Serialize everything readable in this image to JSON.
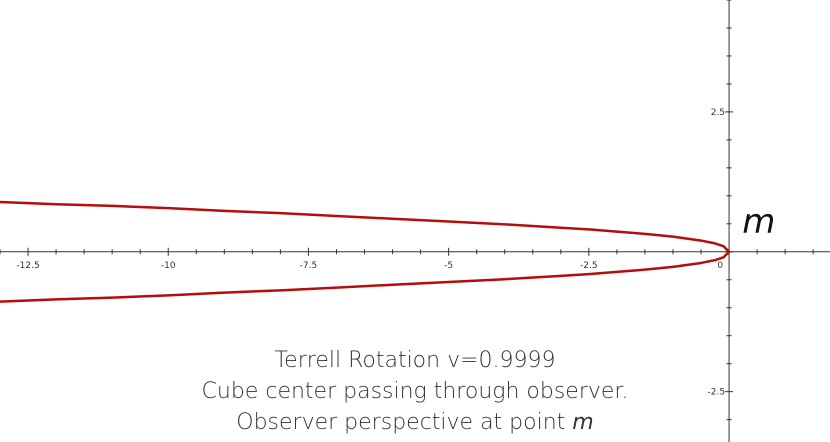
{
  "chart_data": {
    "type": "line",
    "title": "",
    "xlabel": "",
    "ylabel": "",
    "xlim": [
      -13,
      1.8
    ],
    "ylim": [
      -3.4,
      4.5
    ],
    "x_ticks": [
      -12.5,
      -10,
      -7.5,
      -5,
      -2.5,
      0
    ],
    "x_tick_labels": [
      "-12.5",
      "-10",
      "-7.5",
      "-5",
      "-2.5",
      "0"
    ],
    "y_ticks": [
      2.5,
      -2.5
    ],
    "y_tick_labels": [
      "2.5",
      "-2.5"
    ],
    "grid": false,
    "series": [
      {
        "color": "#b50d0d",
        "x": [
          0,
          -0.1,
          -0.25,
          -0.5,
          -1,
          -1.5,
          -2,
          -2.5,
          -3,
          -4,
          -5,
          -6,
          -7,
          -8,
          -9,
          -10,
          -11,
          -12,
          -13
        ],
        "y_upper": [
          0,
          0.1,
          0.15,
          0.2,
          0.27,
          0.32,
          0.36,
          0.4,
          0.43,
          0.49,
          0.54,
          0.59,
          0.64,
          0.69,
          0.73,
          0.78,
          0.82,
          0.85,
          0.89
        ],
        "y_lower": [
          0,
          -0.1,
          -0.15,
          -0.2,
          -0.27,
          -0.32,
          -0.36,
          -0.4,
          -0.43,
          -0.49,
          -0.54,
          -0.59,
          -0.64,
          -0.69,
          -0.73,
          -0.78,
          -0.82,
          -0.85,
          -0.89
        ]
      }
    ],
    "annotations": [
      {
        "text": "m",
        "x": 0.2,
        "y": 0.55
      }
    ]
  },
  "caption": {
    "line1": "Terrell Rotation v=0.9999",
    "line2": "Cube center passing through observer.",
    "line3_prefix": "Observer perspective at point ",
    "line3_point": "m"
  }
}
